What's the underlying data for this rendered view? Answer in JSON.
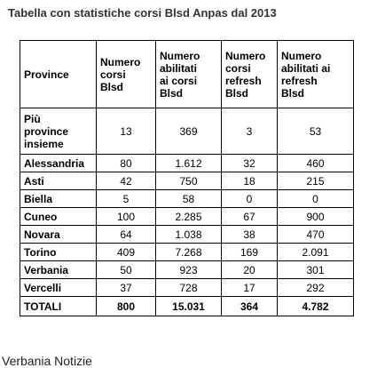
{
  "title": "Tabella con statistiche corsi Blsd Anpas dal 2013",
  "table": {
    "headers": {
      "province": "Province",
      "corsi": [
        "Numero",
        "corsi",
        "Blsd"
      ],
      "abilitati": [
        "Numero",
        "abilitati",
        "ai corsi",
        "Blsd"
      ],
      "refresh": [
        "Numero",
        "corsi",
        "refresh",
        "Blsd"
      ],
      "abilitati_refresh": [
        "Numero",
        "abilitati ai",
        "refresh",
        "Blsd"
      ]
    },
    "rows": [
      {
        "province": [
          "Più",
          "province",
          "insieme"
        ],
        "corsi": "13",
        "abilitati": "369",
        "refresh": "3",
        "abilitati_refresh": "53"
      },
      {
        "province": [
          "Alessandria"
        ],
        "corsi": "80",
        "abilitati": "1.612",
        "refresh": "32",
        "abilitati_refresh": "460"
      },
      {
        "province": [
          "Asti"
        ],
        "corsi": "42",
        "abilitati": "750",
        "refresh": "18",
        "abilitati_refresh": "215"
      },
      {
        "province": [
          "Biella"
        ],
        "corsi": "5",
        "abilitati": "58",
        "refresh": "0",
        "abilitati_refresh": "0"
      },
      {
        "province": [
          "Cuneo"
        ],
        "corsi": "100",
        "abilitati": "2.285",
        "refresh": "67",
        "abilitati_refresh": "900"
      },
      {
        "province": [
          "Novara"
        ],
        "corsi": "64",
        "abilitati": "1.038",
        "refresh": "38",
        "abilitati_refresh": "470"
      },
      {
        "province": [
          "Torino"
        ],
        "corsi": "409",
        "abilitati": "7.268",
        "refresh": "169",
        "abilitati_refresh": "2.091"
      },
      {
        "province": [
          "Verbania"
        ],
        "corsi": "50",
        "abilitati": "923",
        "refresh": "20",
        "abilitati_refresh": "301"
      },
      {
        "province": [
          "Vercelli"
        ],
        "corsi": "37",
        "abilitati": "728",
        "refresh": "17",
        "abilitati_refresh": "292"
      }
    ],
    "total": {
      "province": "TOTALI",
      "corsi": "800",
      "abilitati": "15.031",
      "refresh": "364",
      "abilitati_refresh": "4.782"
    }
  },
  "footer": "Verbania Notizie"
}
